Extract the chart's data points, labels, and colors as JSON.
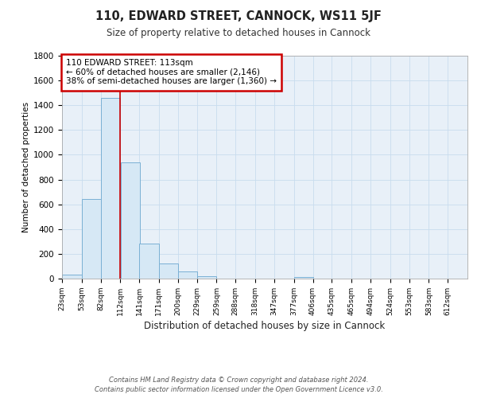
{
  "title1": "110, EDWARD STREET, CANNOCK, WS11 5JF",
  "title2": "Size of property relative to detached houses in Cannock",
  "xlabel": "Distribution of detached houses by size in Cannock",
  "ylabel": "Number of detached properties",
  "footer": "Contains HM Land Registry data © Crown copyright and database right 2024.\nContains public sector information licensed under the Open Government Licence v3.0.",
  "bins": [
    23,
    53,
    82,
    112,
    141,
    171,
    200,
    229,
    259,
    288,
    318,
    347,
    377,
    406,
    435,
    465,
    494,
    524,
    553,
    583,
    612
  ],
  "values": [
    35,
    640,
    1460,
    940,
    280,
    125,
    60,
    20,
    0,
    0,
    0,
    0,
    10,
    0,
    0,
    0,
    0,
    0,
    0,
    0
  ],
  "bar_color": "#d6e8f5",
  "bar_edge_color": "#7ab0d4",
  "grid_color": "#c8dcee",
  "annotation_text": "110 EDWARD STREET: 113sqm\n← 60% of detached houses are smaller (2,146)\n38% of semi-detached houses are larger (1,360) →",
  "annotation_box_color": "#ffffff",
  "annotation_box_edge_color": "#cc0000",
  "vline_x": 112,
  "vline_color": "#cc0000",
  "ylim": [
    0,
    1800
  ],
  "yticks": [
    0,
    200,
    400,
    600,
    800,
    1000,
    1200,
    1400,
    1600,
    1800
  ],
  "background_color": "#ffffff",
  "plot_background": "#e8f0f8"
}
